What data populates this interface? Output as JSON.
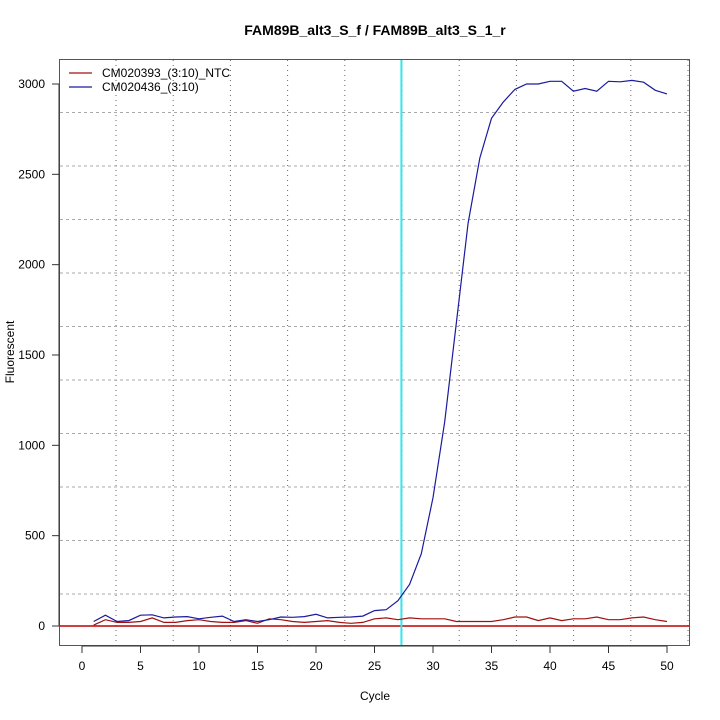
{
  "chart_data": {
    "type": "line",
    "title": "FAM89B_alt3_S_f / FAM89B_alt3_S_1_r",
    "xlabel": "Cycle",
    "ylabel": "Fluorescent",
    "xlim": [
      -2,
      52
    ],
    "ylim": [
      -110,
      3140
    ],
    "xticks": [
      0,
      5,
      10,
      15,
      20,
      25,
      30,
      35,
      40,
      45,
      50
    ],
    "yticks": [
      0,
      500,
      1000,
      1500,
      2000,
      2500,
      3000
    ],
    "grid": true,
    "legend_position": "top-left",
    "threshold": {
      "y": 0,
      "color": "#c00000"
    },
    "ct_marker": {
      "x": 27.3,
      "color": "#33e6f0"
    },
    "x": [
      1,
      2,
      3,
      4,
      5,
      6,
      7,
      8,
      9,
      10,
      11,
      12,
      13,
      14,
      15,
      16,
      17,
      18,
      19,
      20,
      21,
      22,
      23,
      24,
      25,
      26,
      27,
      28,
      29,
      30,
      31,
      32,
      33,
      34,
      35,
      36,
      37,
      38,
      39,
      40,
      41,
      42,
      43,
      44,
      45,
      46,
      47,
      48,
      49,
      50
    ],
    "series": [
      {
        "name": "CM020393_(3:10)_NTC",
        "color": "#a01010",
        "values": [
          5,
          35,
          20,
          20,
          25,
          45,
          20,
          20,
          30,
          35,
          25,
          20,
          20,
          30,
          15,
          40,
          35,
          25,
          20,
          25,
          30,
          20,
          15,
          20,
          40,
          45,
          35,
          45,
          40,
          40,
          40,
          25,
          25,
          25,
          25,
          35,
          50,
          50,
          30,
          45,
          30,
          40,
          40,
          50,
          35,
          35,
          45,
          50,
          35,
          25
        ]
      },
      {
        "name": "CM020436_(3:10)",
        "color": "#1a1aa0",
        "values": [
          25,
          60,
          25,
          30,
          60,
          62,
          45,
          50,
          52,
          40,
          48,
          55,
          25,
          35,
          25,
          35,
          50,
          48,
          52,
          65,
          45,
          48,
          50,
          55,
          85,
          90,
          140,
          230,
          400,
          710,
          1130,
          1680,
          2230,
          2590,
          2810,
          2900,
          2970,
          3000,
          3000,
          3015,
          3015,
          2960,
          2975,
          2960,
          3015,
          3012,
          3020,
          3010,
          2965,
          2945
        ]
      }
    ]
  }
}
